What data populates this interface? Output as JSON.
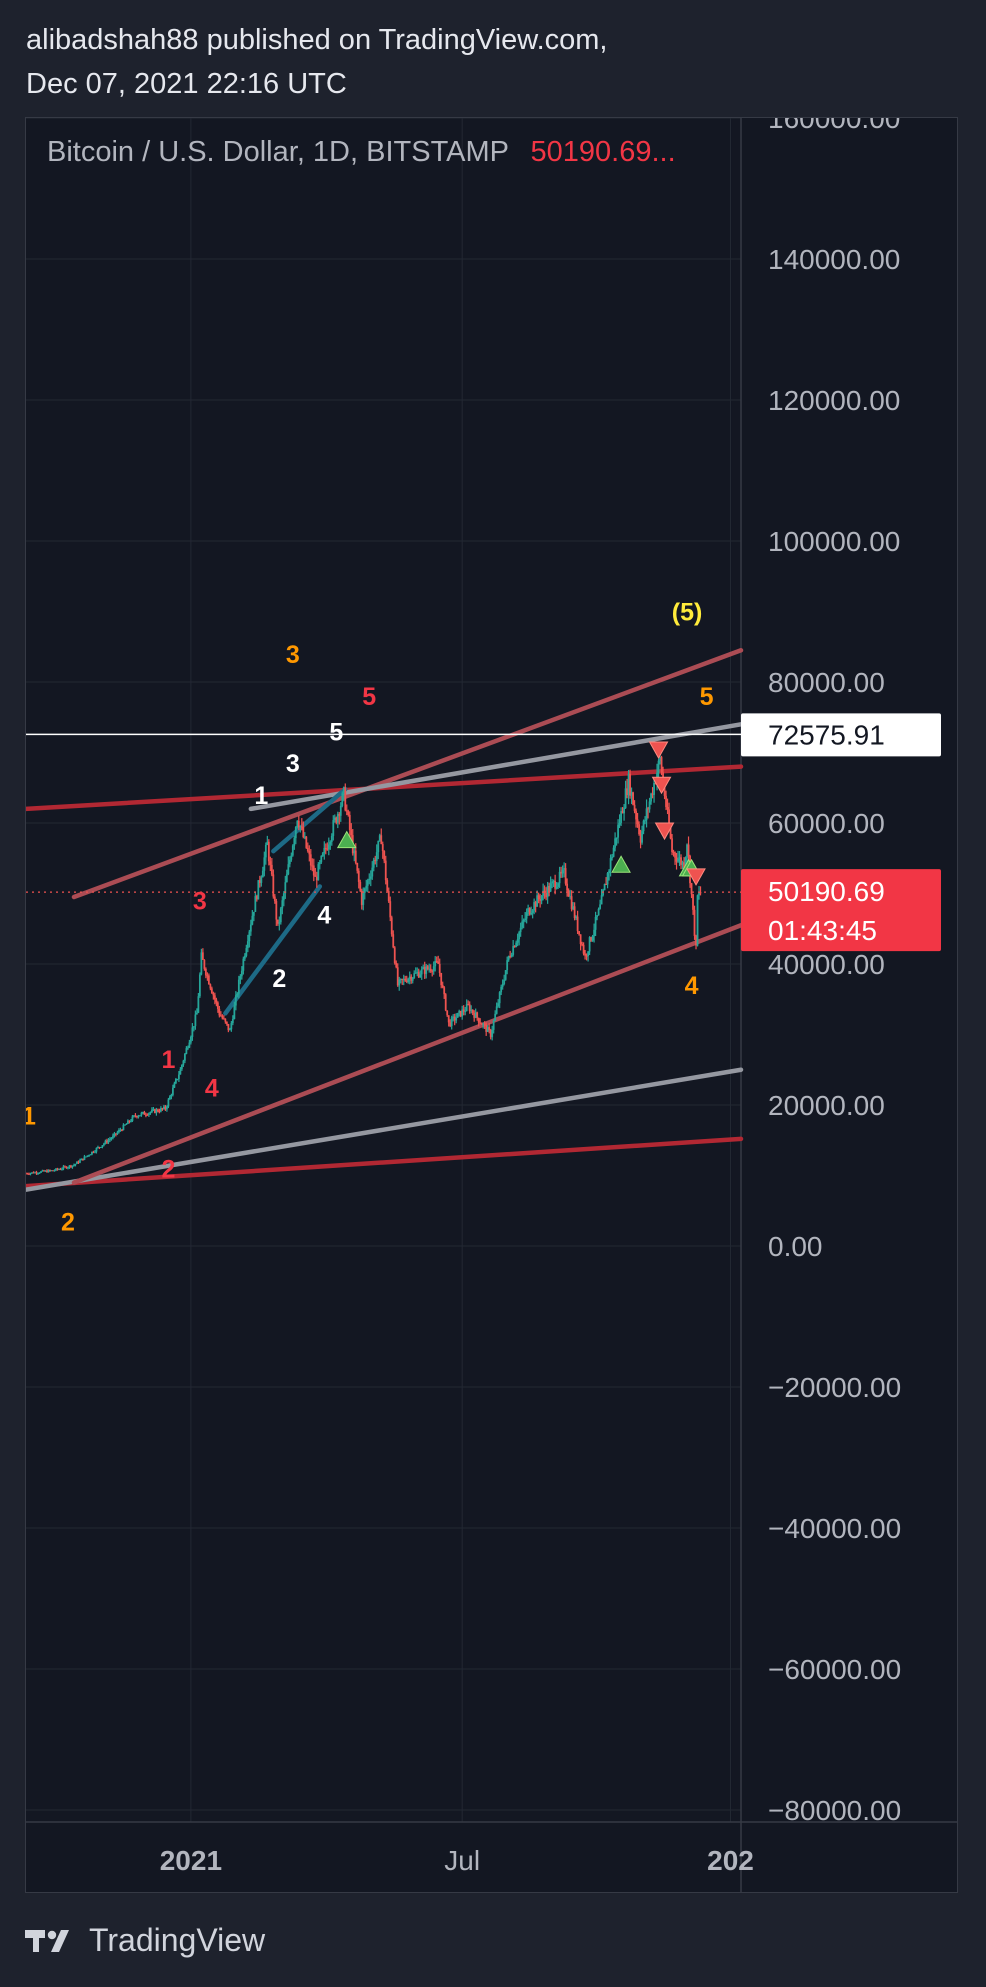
{
  "header": {
    "line1": "alibadshah88 published on TradingView.com,",
    "line2": "Dec 07, 2021 22:16 UTC"
  },
  "legend": {
    "symbol": "Bitcoin / U.S. Dollar, 1D, BITSTAMP",
    "price": "50190.69..."
  },
  "footer": {
    "brand": "TradingView"
  },
  "colors": {
    "background": "#131722",
    "up": "#26a69a",
    "down": "#ef5350",
    "orange": "#ff9800",
    "red_label": "#f23645",
    "yellow": "#ffeb3b"
  },
  "chart_data": {
    "type": "candlestick",
    "symbol": "BTCUSD",
    "interval": "1D",
    "exchange": "BITSTAMP",
    "ylim": [
      -80000,
      160000
    ],
    "y_ticks": [
      160000,
      140000,
      120000,
      100000,
      80000,
      60000,
      40000,
      20000,
      0,
      -20000,
      -40000,
      -60000,
      -80000
    ],
    "y_tick_labels": [
      "160000.00",
      "140000.00",
      "120000.00",
      "100000.00",
      "80000.00",
      "60000.00",
      "40000.00",
      "20000.00",
      "0.00",
      "−20000.00",
      "−40000.00",
      "−60000.00",
      "−80000.00"
    ],
    "x_range": [
      "2020-09-13",
      "2022-01-03"
    ],
    "x_ticks": [
      {
        "date": "2021-01-01",
        "label": "2021"
      },
      {
        "date": "2021-07-01",
        "label": "Jul"
      },
      {
        "date": "2021-12-27",
        "label": "202"
      }
    ],
    "horizontal_line": {
      "price": 72575.91,
      "label": "72575.91"
    },
    "last_price": {
      "price": 50190.69,
      "label": "50190.69",
      "countdown": "01:43:45"
    },
    "price_path": [
      [
        "2020-09-13",
        10300
      ],
      [
        "2020-10-01",
        10700
      ],
      [
        "2020-10-15",
        11500
      ],
      [
        "2020-10-25",
        13000
      ],
      [
        "2020-11-10",
        15500
      ],
      [
        "2020-11-25",
        18500
      ],
      [
        "2020-12-05",
        19000
      ],
      [
        "2020-12-15",
        19500
      ],
      [
        "2020-12-25",
        25000
      ],
      [
        "2021-01-05",
        33000
      ],
      [
        "2021-01-08",
        41000
      ],
      [
        "2021-01-20",
        33000
      ],
      [
        "2021-01-27",
        30500
      ],
      [
        "2021-02-08",
        44000
      ],
      [
        "2021-02-21",
        57000
      ],
      [
        "2021-02-28",
        45000
      ],
      [
        "2021-03-13",
        61000
      ],
      [
        "2021-03-25",
        52000
      ],
      [
        "2021-04-13",
        64000
      ],
      [
        "2021-04-25",
        49000
      ],
      [
        "2021-05-08",
        58000
      ],
      [
        "2021-05-19",
        37000
      ],
      [
        "2021-05-25",
        38000
      ],
      [
        "2021-06-15",
        40000
      ],
      [
        "2021-06-22",
        31500
      ],
      [
        "2021-07-05",
        34000
      ],
      [
        "2021-07-20",
        30000
      ],
      [
        "2021-08-01",
        41000
      ],
      [
        "2021-08-14",
        47500
      ],
      [
        "2021-08-22",
        49500
      ],
      [
        "2021-09-07",
        52800
      ],
      [
        "2021-09-21",
        41000
      ],
      [
        "2021-10-01",
        48000
      ],
      [
        "2021-10-20",
        66000
      ],
      [
        "2021-10-28",
        58000
      ],
      [
        "2021-11-10",
        69000
      ],
      [
        "2021-11-18",
        56000
      ],
      [
        "2021-11-26",
        54000
      ],
      [
        "2021-11-28",
        57500
      ],
      [
        "2021-12-04",
        42000
      ],
      [
        "2021-12-05",
        49500
      ],
      [
        "2021-12-07",
        50190
      ]
    ],
    "trendlines": [
      {
        "from": [
          "2020-09-13",
          8500
        ],
        "to": [
          "2022-01-03",
          15200
        ],
        "color": "#b22833"
      },
      {
        "from": [
          "2020-09-13",
          8000
        ],
        "to": [
          "2022-01-03",
          25000
        ],
        "color": "#9598a1"
      },
      {
        "from": [
          "2020-10-15",
          49500
        ],
        "to": [
          "2022-01-03",
          84500
        ],
        "color": "#ab4c54"
      },
      {
        "from": [
          "2020-09-13",
          62000
        ],
        "to": [
          "2022-01-03",
          68000
        ],
        "color": "#b22833"
      },
      {
        "from": [
          "2021-02-10",
          62000
        ],
        "to": [
          "2022-01-03",
          74000
        ],
        "color": "#9598a1"
      },
      {
        "from": [
          "2020-10-15",
          9000
        ],
        "to": [
          "2022-01-03",
          45500
        ],
        "color": "#ab4c54"
      },
      {
        "from": [
          "2021-02-25",
          56000
        ],
        "to": [
          "2021-04-14",
          64800
        ],
        "color": "#1d6a86"
      },
      {
        "from": [
          "2021-01-24",
          33000
        ],
        "to": [
          "2021-03-28",
          51000
        ],
        "color": "#1d6a86"
      }
    ],
    "wave_labels": [
      {
        "text": "1",
        "date": "2020-09-15",
        "price": 18500,
        "color": "orange"
      },
      {
        "text": "2",
        "date": "2020-10-11",
        "price": 3500,
        "color": "orange"
      },
      {
        "text": "3",
        "date": "2021-03-10",
        "price": 84000,
        "color": "orange"
      },
      {
        "text": "4",
        "date": "2021-12-01",
        "price": 37000,
        "color": "orange"
      },
      {
        "text": "5",
        "date": "2021-12-11",
        "price": 78000,
        "color": "orange"
      },
      {
        "text": "(5)",
        "date": "2021-11-28",
        "price": 90000,
        "color": "yellow"
      },
      {
        "text": "1",
        "date": "2020-12-17",
        "price": 26500,
        "color": "red"
      },
      {
        "text": "2",
        "date": "2020-12-17",
        "price": 11000,
        "color": "red"
      },
      {
        "text": "3",
        "date": "2021-01-07",
        "price": 49000,
        "color": "red"
      },
      {
        "text": "4",
        "date": "2021-01-15",
        "price": 22500,
        "color": "red"
      },
      {
        "text": "5",
        "date": "2021-04-30",
        "price": 78000,
        "color": "red"
      },
      {
        "text": "1",
        "date": "2021-02-17",
        "price": 64000,
        "color": "white"
      },
      {
        "text": "2",
        "date": "2021-03-01",
        "price": 38000,
        "color": "white"
      },
      {
        "text": "3",
        "date": "2021-03-10",
        "price": 68500,
        "color": "white"
      },
      {
        "text": "4",
        "date": "2021-03-31",
        "price": 47000,
        "color": "white"
      },
      {
        "text": "5",
        "date": "2021-04-08",
        "price": 73000,
        "color": "white"
      }
    ],
    "signals": [
      {
        "dir": "up",
        "date": "2021-04-15",
        "price": 57500
      },
      {
        "dir": "up",
        "date": "2021-10-15",
        "price": 54000
      },
      {
        "dir": "up",
        "date": "2021-11-29",
        "price": 53500
      },
      {
        "dir": "up",
        "date": "2021-12-01",
        "price": 53500
      },
      {
        "dir": "down",
        "date": "2021-11-09",
        "price": 70500
      },
      {
        "dir": "down",
        "date": "2021-11-11",
        "price": 65500
      },
      {
        "dir": "down",
        "date": "2021-11-13",
        "price": 59000
      },
      {
        "dir": "down",
        "date": "2021-12-04",
        "price": 52500
      }
    ]
  }
}
